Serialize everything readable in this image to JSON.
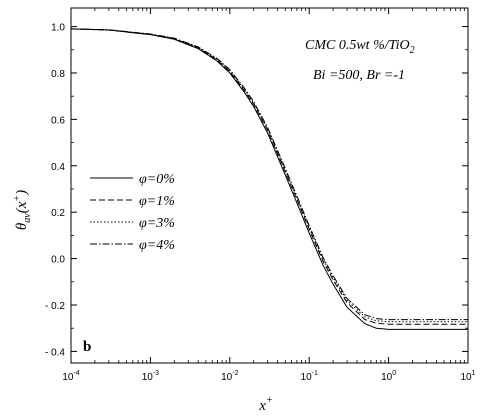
{
  "chart_data": {
    "type": "line",
    "xscale": "log",
    "xlim": [
      0.0001,
      10
    ],
    "ylim": [
      -0.45,
      1.08
    ],
    "x_ticks": [
      {
        "value": 0.0001,
        "base": "10",
        "exp": "-4"
      },
      {
        "value": 0.001,
        "base": "10",
        "exp": "-3"
      },
      {
        "value": 0.01,
        "base": "10",
        "exp": "-2"
      },
      {
        "value": 0.1,
        "base": "10",
        "exp": "-1"
      },
      {
        "value": 1,
        "base": "10",
        "exp": "0"
      },
      {
        "value": 10,
        "base": "10",
        "exp": "1"
      }
    ],
    "y_ticks": [
      {
        "value": 1.0,
        "label": "1.0"
      },
      {
        "value": 0.8,
        "label": "0.8"
      },
      {
        "value": 0.6,
        "label": "0.6"
      },
      {
        "value": 0.4,
        "label": "0.4"
      },
      {
        "value": 0.2,
        "label": "0.2"
      },
      {
        "value": 0.0,
        "label": "0.0"
      },
      {
        "value": -0.2,
        "label": "- 0.2"
      },
      {
        "value": -0.4,
        "label": "- 0.4"
      }
    ],
    "xlabel": {
      "base": "x",
      "sup": "+"
    },
    "ylabel": {
      "base": "θ",
      "sub": "av",
      "mid": "(x",
      "sup": "+",
      "end": ")"
    },
    "annotations": {
      "line1_pre": "CMC 0.5wt %/TiO",
      "line1_sub": "2",
      "line2": "Bi =500, Br =-1",
      "panel": "b"
    },
    "legend_position": "left-middle",
    "series": [
      {
        "name": "φ=0%",
        "dash": "solid",
        "x": [
          0.0001,
          0.0003,
          0.001,
          0.002,
          0.004,
          0.007,
          0.01,
          0.015,
          0.02,
          0.03,
          0.05,
          0.07,
          0.1,
          0.15,
          0.2,
          0.3,
          0.5,
          0.7,
          1,
          2,
          5,
          10
        ],
        "y": [
          0.99,
          0.985,
          0.965,
          0.945,
          0.905,
          0.85,
          0.8,
          0.72,
          0.655,
          0.54,
          0.36,
          0.24,
          0.11,
          -0.03,
          -0.11,
          -0.21,
          -0.28,
          -0.3,
          -0.305,
          -0.305,
          -0.305,
          -0.305
        ]
      },
      {
        "name": "φ=1%",
        "dash": "6,3",
        "x": [
          0.0001,
          0.0003,
          0.001,
          0.002,
          0.004,
          0.007,
          0.01,
          0.015,
          0.02,
          0.03,
          0.05,
          0.07,
          0.1,
          0.15,
          0.2,
          0.3,
          0.5,
          0.7,
          1,
          2,
          5,
          10
        ],
        "y": [
          0.99,
          0.985,
          0.966,
          0.947,
          0.908,
          0.855,
          0.806,
          0.728,
          0.665,
          0.552,
          0.373,
          0.255,
          0.126,
          -0.013,
          -0.092,
          -0.19,
          -0.262,
          -0.279,
          -0.283,
          -0.283,
          -0.283,
          -0.283
        ]
      },
      {
        "name": "φ=3%",
        "dash": "1.5,2",
        "x": [
          0.0001,
          0.0003,
          0.001,
          0.002,
          0.004,
          0.007,
          0.01,
          0.015,
          0.02,
          0.03,
          0.05,
          0.07,
          0.1,
          0.15,
          0.2,
          0.3,
          0.5,
          0.7,
          1,
          2,
          5,
          10
        ],
        "y": [
          0.99,
          0.986,
          0.967,
          0.948,
          0.91,
          0.858,
          0.81,
          0.733,
          0.67,
          0.558,
          0.38,
          0.262,
          0.134,
          -0.004,
          -0.082,
          -0.18,
          -0.251,
          -0.268,
          -0.272,
          -0.272,
          -0.272,
          -0.272
        ]
      },
      {
        "name": "φ=4%",
        "dash": "7,2,1.5,2",
        "x": [
          0.0001,
          0.0003,
          0.001,
          0.002,
          0.004,
          0.007,
          0.01,
          0.015,
          0.02,
          0.03,
          0.05,
          0.07,
          0.1,
          0.15,
          0.2,
          0.3,
          0.5,
          0.7,
          1,
          2,
          5,
          10
        ],
        "y": [
          0.99,
          0.986,
          0.968,
          0.95,
          0.912,
          0.861,
          0.814,
          0.738,
          0.676,
          0.565,
          0.388,
          0.27,
          0.142,
          0.004,
          -0.074,
          -0.172,
          -0.242,
          -0.259,
          -0.263,
          -0.263,
          -0.263,
          -0.263
        ]
      }
    ]
  }
}
